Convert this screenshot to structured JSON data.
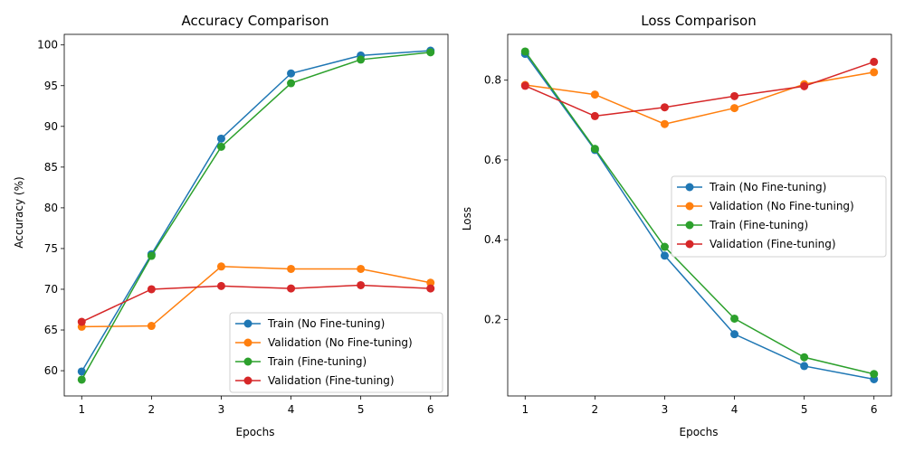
{
  "colors": {
    "series": [
      "#1f77b4",
      "#ff7f0e",
      "#2ca02c",
      "#d62728"
    ],
    "legend_border": "#d0d0d0"
  },
  "chart_data": [
    {
      "type": "line",
      "title": "Accuracy Comparison",
      "xlabel": "Epochs",
      "ylabel": "Accuracy (%)",
      "x": [
        1,
        2,
        3,
        4,
        5,
        6
      ],
      "xlim": [
        0.75,
        6.25
      ],
      "ylim": [
        56.9,
        101.3
      ],
      "xticks": [
        1,
        2,
        3,
        4,
        5,
        6
      ],
      "yticks": [
        60,
        65,
        70,
        75,
        80,
        85,
        90,
        95,
        100
      ],
      "grid": false,
      "legend": "lower-right",
      "series": [
        {
          "name": "Train (No Fine-tuning)",
          "values": [
            59.9,
            74.3,
            88.5,
            96.5,
            98.7,
            99.3
          ]
        },
        {
          "name": "Validation (No Fine-tuning)",
          "values": [
            65.4,
            65.5,
            72.8,
            72.5,
            72.5,
            70.8
          ]
        },
        {
          "name": "Train (Fine-tuning)",
          "values": [
            58.9,
            74.1,
            87.5,
            95.3,
            98.2,
            99.1
          ]
        },
        {
          "name": "Validation (Fine-tuning)",
          "values": [
            66.0,
            70.0,
            70.4,
            70.1,
            70.5,
            70.1
          ]
        }
      ]
    },
    {
      "type": "line",
      "title": "Loss Comparison",
      "xlabel": "Epochs",
      "ylabel": "Loss",
      "x": [
        1,
        2,
        3,
        4,
        5,
        6
      ],
      "xlim": [
        0.75,
        6.25
      ],
      "ylim": [
        0.008,
        0.915
      ],
      "xticks": [
        1,
        2,
        3,
        4,
        5,
        6
      ],
      "yticks": [
        0.2,
        0.4,
        0.6,
        0.8
      ],
      "grid": false,
      "legend": "center-right",
      "series": [
        {
          "name": "Train (No Fine-tuning)",
          "values": [
            0.866,
            0.625,
            0.36,
            0.163,
            0.083,
            0.05
          ]
        },
        {
          "name": "Validation (No Fine-tuning)",
          "values": [
            0.788,
            0.764,
            0.69,
            0.73,
            0.79,
            0.82
          ]
        },
        {
          "name": "Train (Fine-tuning)",
          "values": [
            0.872,
            0.628,
            0.382,
            0.202,
            0.105,
            0.063
          ]
        },
        {
          "name": "Validation (Fine-tuning)",
          "values": [
            0.786,
            0.71,
            0.732,
            0.76,
            0.785,
            0.846
          ]
        }
      ]
    }
  ]
}
